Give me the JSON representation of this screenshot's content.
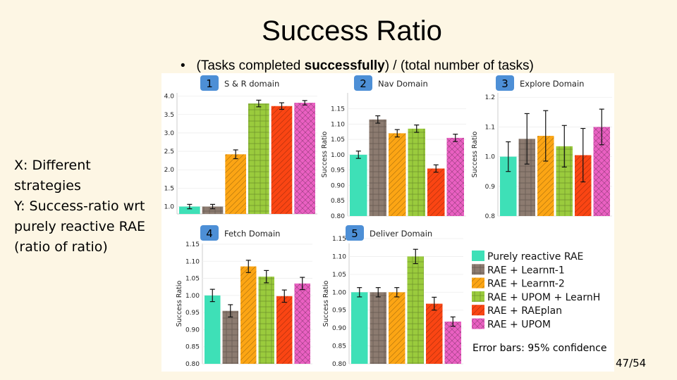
{
  "slide": {
    "title": "Success Ratio",
    "bullet": "•",
    "subtitle_pre": "(Tasks completed ",
    "subtitle_bold": "successfully",
    "subtitle_post": ") / (total number of tasks)",
    "side_lines": [
      "X: Different",
      "strategies",
      "Y: Success-ratio wrt",
      "purely reactive RAE",
      "(ratio of ratio)"
    ],
    "error_note": "Error bars: 95% confidence",
    "page": "47/54"
  },
  "colors": {
    "Purely reactive RAE": "#3ee0b7",
    "RAE + Learnπ-1": "#8c7b70",
    "RAE + Learnπ-2": "#fca514",
    "RAE + UPOM + LearnH": "#9acb3d",
    "RAE + RAEplan": "#fa4513",
    "RAE + UPOM": "#ea60c2",
    "badge": "#4d8fd6"
  },
  "legend": [
    "Purely reactive RAE",
    "RAE + Learnπ-1",
    "RAE + Learnπ-2",
    "RAE + UPOM + LearnH",
    "RAE + RAEplan",
    "RAE + UPOM"
  ],
  "chart_data": [
    {
      "type": "bar",
      "badge": "1",
      "title": "S & R domain",
      "ylabel": "Success Ratio",
      "ylim": [
        0.8,
        4.05
      ],
      "yticks": [
        "1.0",
        "1.5",
        "2.0",
        "2.5",
        "3.0",
        "3.5",
        "4.0"
      ],
      "categories": [
        "Purely reactive RAE",
        "RAE + Learnπ-1",
        "RAE + Learnπ-2",
        "RAE + UPOM + LearnH",
        "RAE + RAEplan",
        "RAE + UPOM"
      ],
      "values": [
        1.0,
        1.0,
        2.42,
        3.8,
        3.73,
        3.82
      ],
      "err": [
        0.06,
        0.06,
        0.12,
        0.09,
        0.09,
        0.06
      ]
    },
    {
      "type": "bar",
      "badge": "2",
      "title": "Nav Domain",
      "ylabel": "Success Ratio",
      "ylim": [
        0.8,
        1.165
      ],
      "yticks": [
        "0.80",
        "0.85",
        "0.90",
        "0.95",
        "1.00",
        "1.05",
        "1.10",
        "1.15"
      ],
      "categories": [
        "Purely reactive RAE",
        "RAE + Learnπ-1",
        "RAE + Learnπ-2",
        "RAE + UPOM + LearnH",
        "RAE + RAEplan",
        "RAE + UPOM"
      ],
      "values": [
        1.0,
        1.115,
        1.07,
        1.085,
        0.955,
        1.055
      ],
      "err": [
        0.012,
        0.012,
        0.012,
        0.012,
        0.012,
        0.012
      ]
    },
    {
      "type": "bar",
      "badge": "3",
      "title": "Explore Domain",
      "ylabel": "Success Ratio",
      "ylim": [
        0.8,
        1.21
      ],
      "yticks": [
        "0.8",
        "0.9",
        "1.0",
        "1.1",
        "1.2"
      ],
      "categories": [
        "Purely reactive RAE",
        "RAE + Learnπ-1",
        "RAE + Learnπ-2",
        "RAE + UPOM + LearnH",
        "RAE + RAEplan",
        "RAE + UPOM"
      ],
      "values": [
        1.0,
        1.06,
        1.07,
        1.035,
        1.005,
        1.1
      ],
      "err": [
        0.05,
        0.085,
        0.085,
        0.07,
        0.09,
        0.06
      ]
    },
    {
      "type": "bar",
      "badge": "4",
      "title": "Fetch Domain",
      "ylabel": "Success Ratio",
      "ylim": [
        0.8,
        1.15
      ],
      "yticks": [
        "0.80",
        "0.85",
        "0.90",
        "0.95",
        "1.00",
        "1.05",
        "1.10",
        "1.15"
      ],
      "categories": [
        "Purely reactive RAE",
        "RAE + Learnπ-1",
        "RAE + Learnπ-2",
        "RAE + UPOM + LearnH",
        "RAE + RAEplan",
        "RAE + UPOM"
      ],
      "values": [
        1.0,
        0.955,
        1.085,
        1.055,
        0.998,
        1.035
      ],
      "err": [
        0.018,
        0.018,
        0.018,
        0.018,
        0.018,
        0.018
      ]
    },
    {
      "type": "bar",
      "badge": "5",
      "title": "Deliver Domain",
      "ylabel": "Success Ratio",
      "ylim": [
        0.8,
        1.15
      ],
      "yticks": [
        "0.80",
        "0.85",
        "0.90",
        "0.95",
        "1.00",
        "1.05",
        "1.10",
        "1.15"
      ],
      "categories": [
        "Purely reactive RAE",
        "RAE + Learnπ-1",
        "RAE + Learnπ-2",
        "RAE + UPOM + LearnH",
        "RAE + RAEplan",
        "RAE + UPOM"
      ],
      "values": [
        1.0,
        1.0,
        1.0,
        1.1,
        0.968,
        0.918
      ],
      "err": [
        0.013,
        0.013,
        0.013,
        0.02,
        0.018,
        0.013
      ]
    }
  ]
}
